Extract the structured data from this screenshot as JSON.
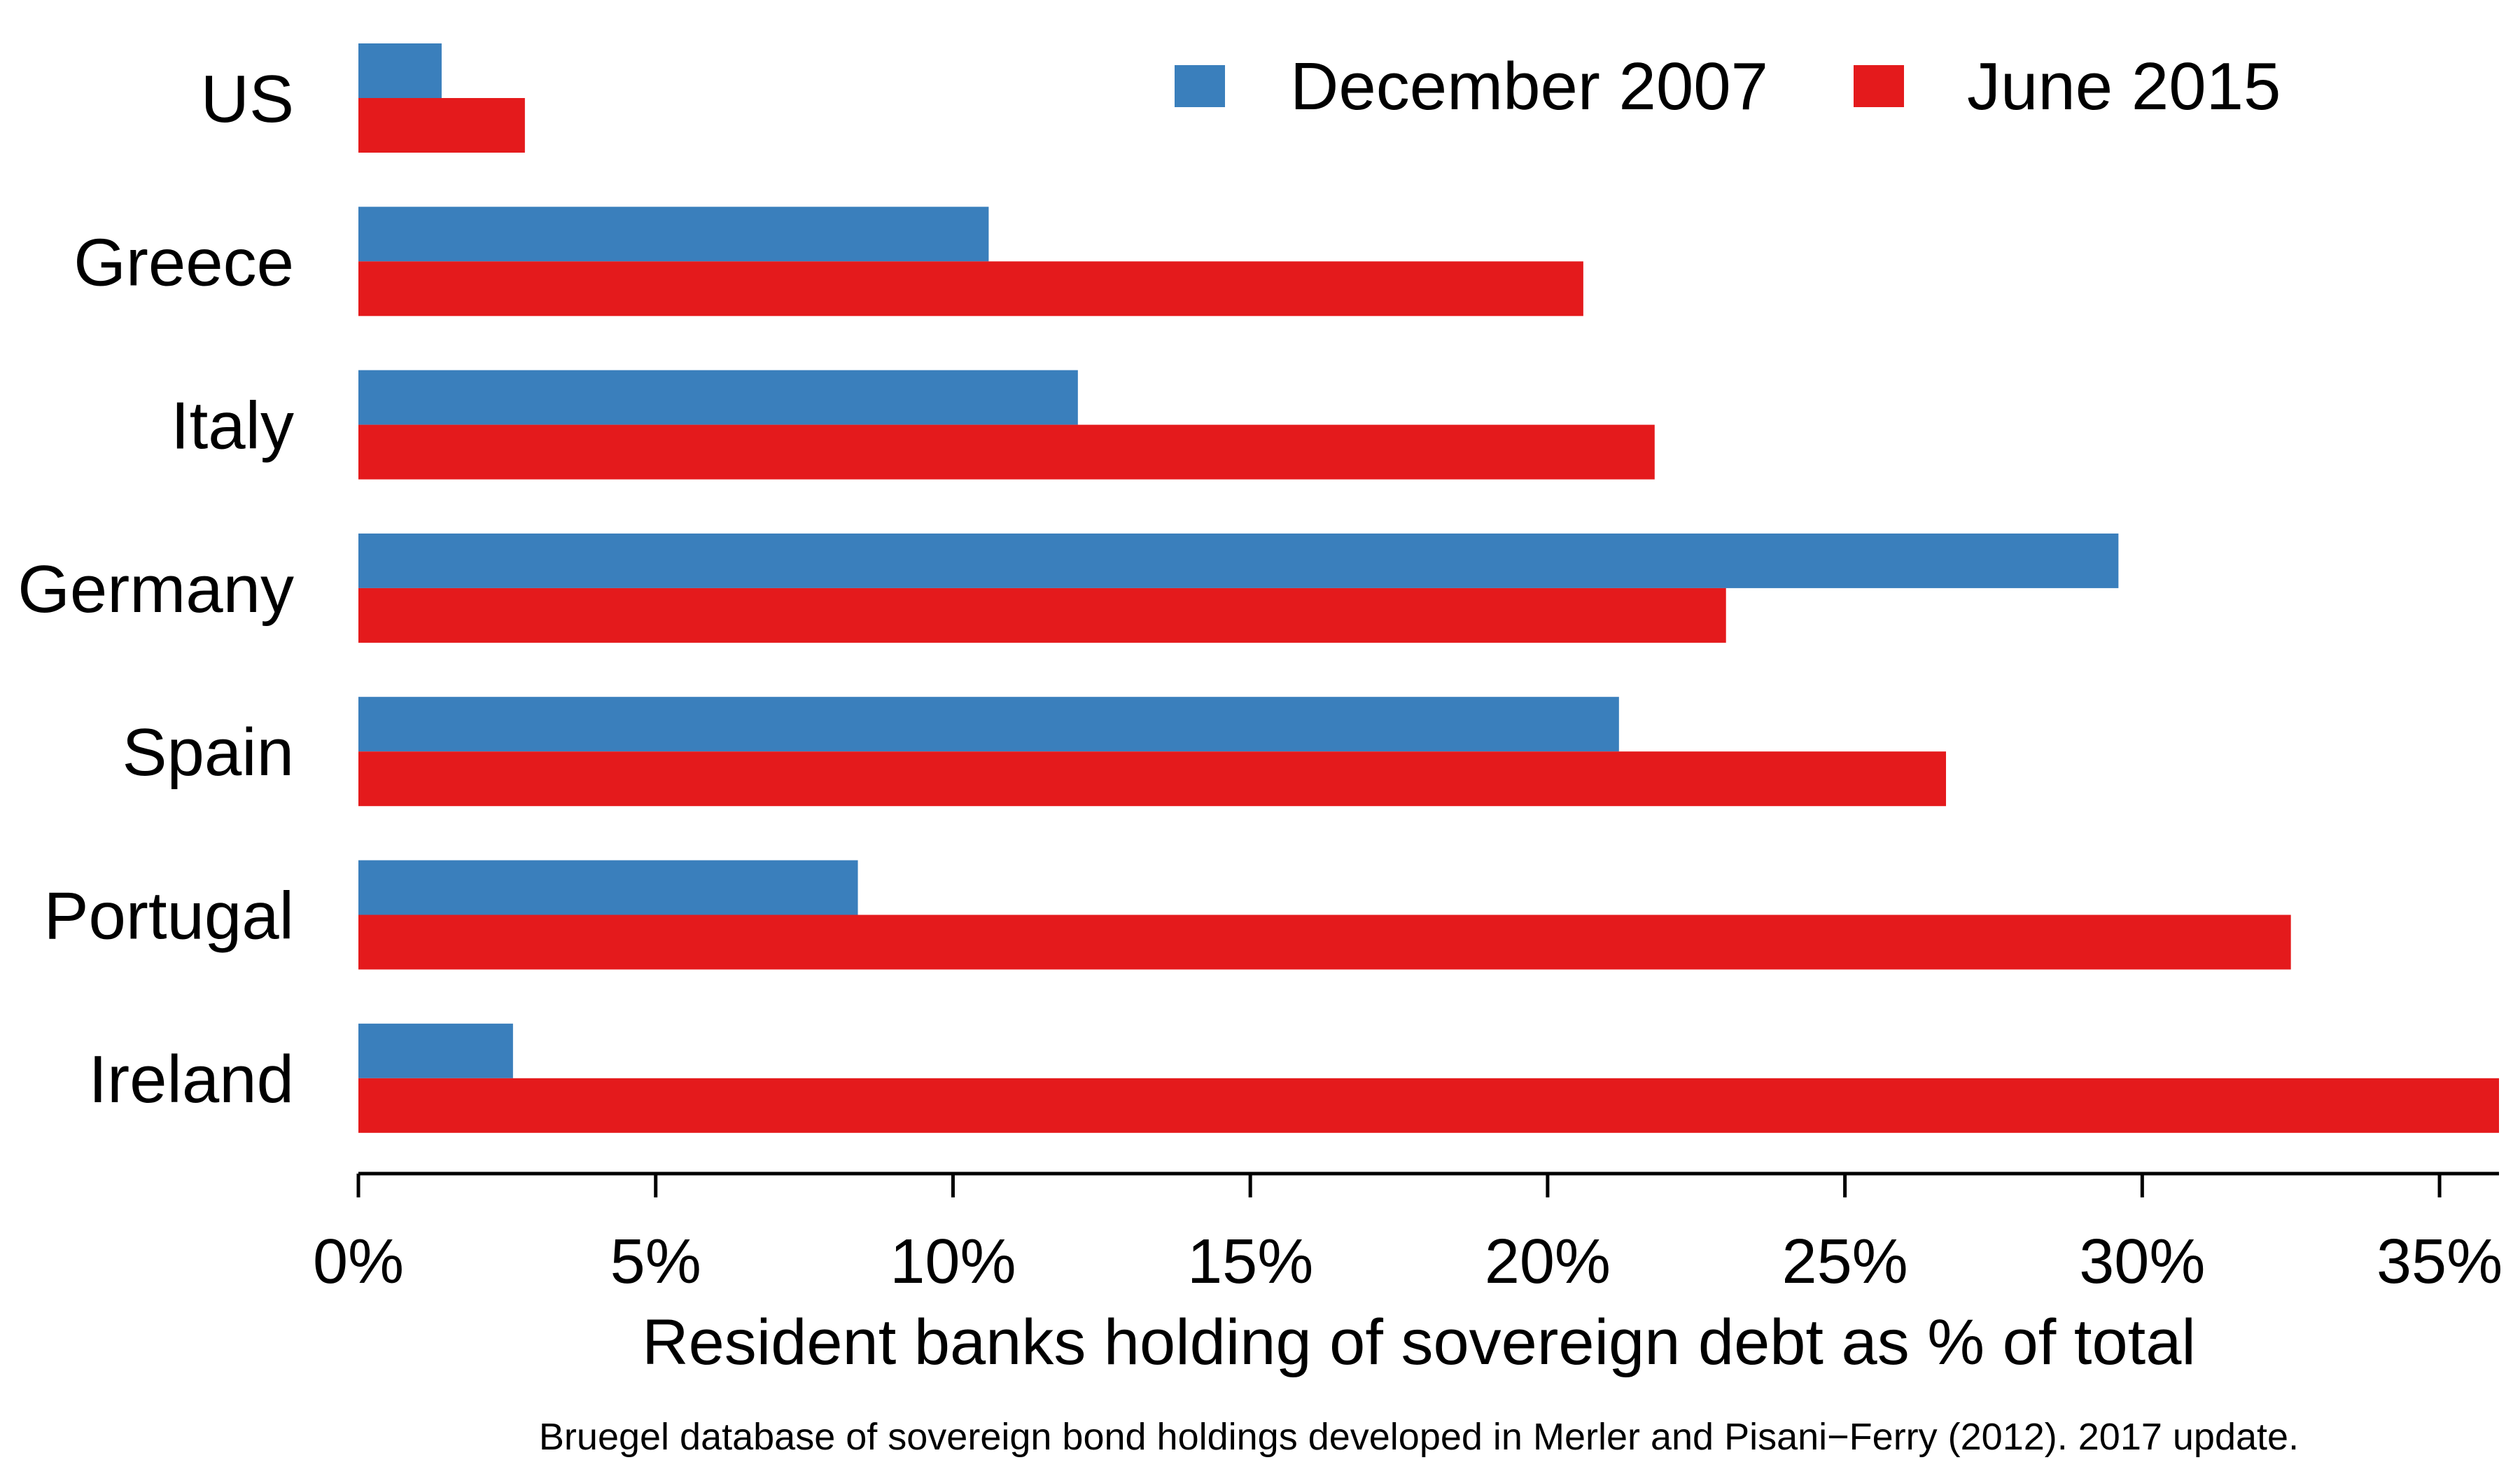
{
  "chart_data": {
    "type": "bar",
    "orientation": "horizontal",
    "categories": [
      "US",
      "Greece",
      "Italy",
      "Germany",
      "Spain",
      "Portugal",
      "Ireland"
    ],
    "series": [
      {
        "name": "December 2007",
        "color": "#3a7fbc",
        "values": [
          1.4,
          10.6,
          12.1,
          29.6,
          21.2,
          8.4,
          2.6
        ]
      },
      {
        "name": "June 2015",
        "color": "#e41a1c",
        "values": [
          2.8,
          20.6,
          21.8,
          23.0,
          26.7,
          32.5,
          36.0
        ]
      }
    ],
    "xlabel": "Resident banks holding of sovereign debt as % of total",
    "xlim": [
      0,
      36
    ],
    "xticks": [
      0,
      5,
      10,
      15,
      20,
      25,
      30,
      35
    ],
    "xtick_labels": [
      "0%",
      "5%",
      "10%",
      "15%",
      "20%",
      "25%",
      "30%",
      "35%"
    ],
    "legend_position": "top-right",
    "grid": false,
    "source_note": "Bruegel database of sovereign bond holdings developed in Merler and Pisani−Ferry (2012). 2017 update."
  }
}
